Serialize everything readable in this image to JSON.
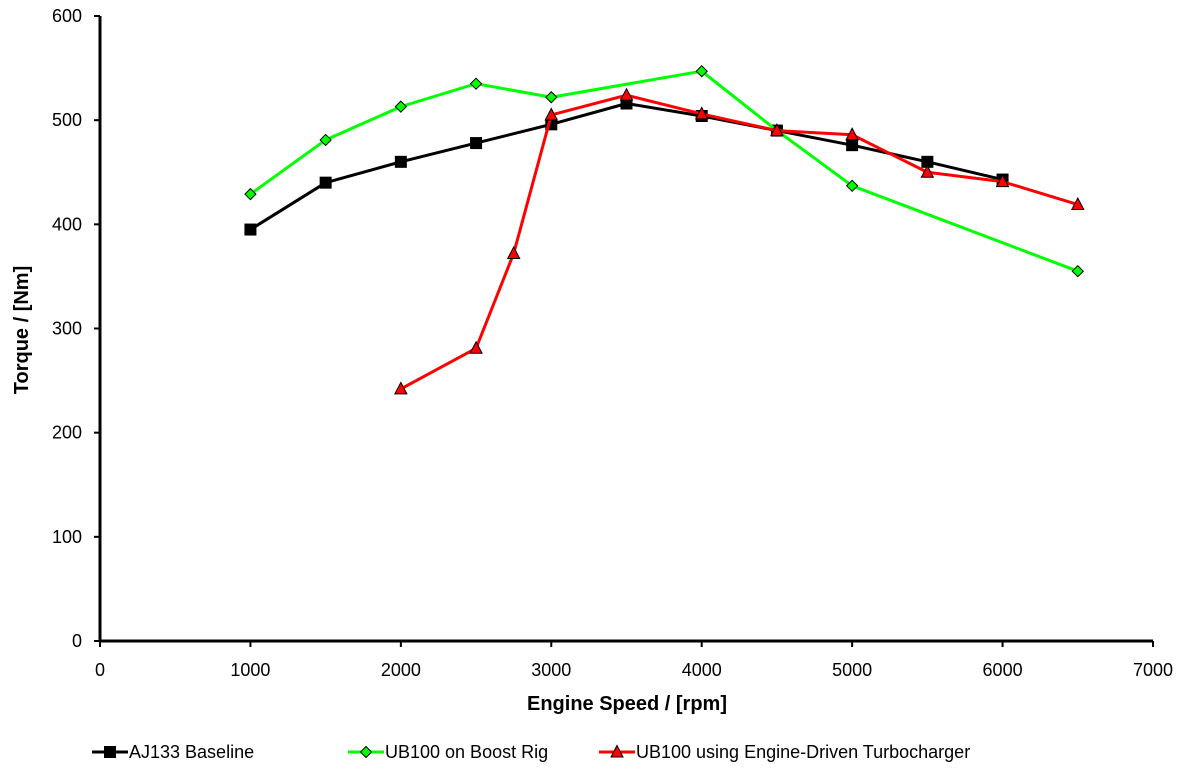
{
  "chart_data": {
    "type": "line",
    "title": "",
    "xlabel": "Engine Speed / [rpm]",
    "ylabel": "Torque / [Nm]",
    "xlim": [
      0,
      7000
    ],
    "ylim": [
      0,
      600
    ],
    "xticks": [
      0,
      1000,
      2000,
      3000,
      4000,
      5000,
      6000,
      7000
    ],
    "yticks": [
      0,
      100,
      200,
      300,
      400,
      500,
      600
    ],
    "xtick_labels": [
      "0",
      "1000",
      "2000",
      "3000",
      "4000",
      "5000",
      "6000",
      "7000"
    ],
    "ytick_labels": [
      "0",
      "100",
      "200",
      "300",
      "400",
      "500",
      "600"
    ],
    "grid": false,
    "legend_position": "bottom",
    "series": [
      {
        "name": "AJ133 Baseline",
        "color": "#000000",
        "marker": "square",
        "x": [
          1000,
          1500,
          2000,
          2500,
          3000,
          3500,
          4000,
          4500,
          5000,
          5500,
          6000
        ],
        "y": [
          395,
          440,
          460,
          478,
          496,
          516,
          504,
          490,
          476,
          460,
          443
        ]
      },
      {
        "name": "UB100 on Boost Rig",
        "color": "#00ff00",
        "marker": "diamond",
        "x": [
          1000,
          1500,
          2000,
          2500,
          3000,
          4000,
          4500,
          5000,
          6500
        ],
        "y": [
          429,
          481,
          513,
          535,
          522,
          547,
          490,
          437,
          355
        ]
      },
      {
        "name": "UB100 using Engine-Driven Turbocharger",
        "color": "#ff0000",
        "marker": "triangle",
        "x": [
          2000,
          2500,
          2750,
          3000,
          3500,
          4000,
          4500,
          5000,
          5500,
          6000,
          6500
        ],
        "y": [
          242,
          281,
          372,
          505,
          524,
          506,
          490,
          486,
          450,
          441,
          419
        ]
      }
    ]
  }
}
